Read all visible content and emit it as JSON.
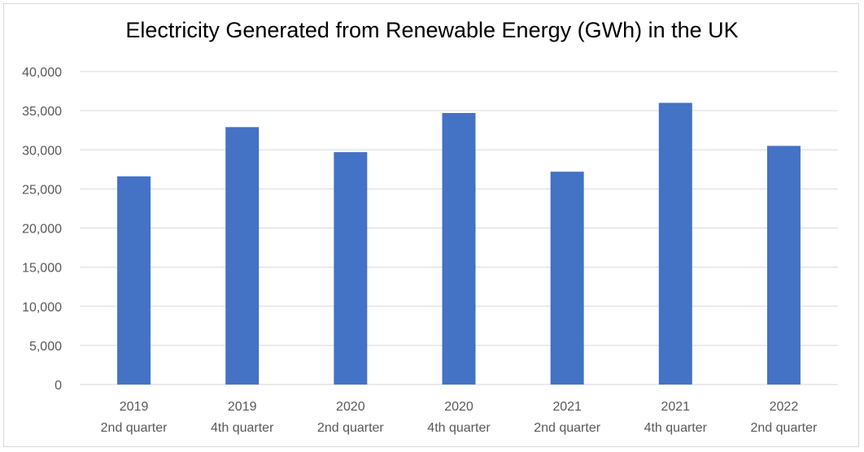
{
  "chart_data": {
    "type": "bar",
    "title": "Electricity Generated from Renewable Energy (GWh) in the UK",
    "categories": [
      [
        "2019",
        "2nd quarter"
      ],
      [
        "2019",
        "4th quarter"
      ],
      [
        "2020",
        "2nd quarter"
      ],
      [
        "2020",
        "4th quarter"
      ],
      [
        "2021",
        "2nd quarter"
      ],
      [
        "2021",
        "4th quarter"
      ],
      [
        "2022",
        "2nd quarter"
      ]
    ],
    "values": [
      26600,
      32900,
      29700,
      34700,
      27200,
      36000,
      30500
    ],
    "ylim": [
      0,
      40000
    ],
    "yticks": [
      "0",
      "5,000",
      "10,000",
      "15,000",
      "20,000",
      "25,000",
      "30,000",
      "35,000",
      "40,000"
    ],
    "grid": true,
    "bar_color": "#4472c4",
    "grid_color": "#d9d9d9"
  }
}
